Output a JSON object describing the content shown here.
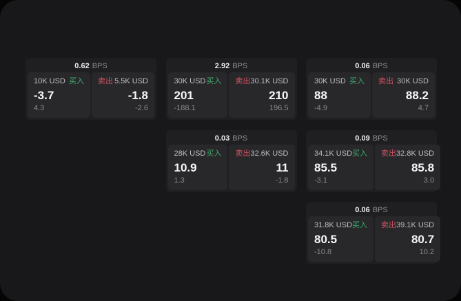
{
  "labels": {
    "bps_unit": "BPS",
    "buy": "买入",
    "sell": "卖出"
  },
  "colors": {
    "buy_green": "#3fab70",
    "sell_red": "#cd5263",
    "window_bg": "#18181a",
    "card_bg": "#1f1f21",
    "panel_bg": "#28282a"
  },
  "cards": [
    {
      "bps": "0.62",
      "buy": {
        "amount": "10K USD",
        "price": "-3.7",
        "delta": "4.3"
      },
      "sell": {
        "amount": "5.5K USD",
        "price": "-1.8",
        "delta": "-2.6"
      }
    },
    {
      "bps": "2.92",
      "buy": {
        "amount": "30K USD",
        "price": "201",
        "delta": "-188.1"
      },
      "sell": {
        "amount": "30.1K USD",
        "price": "210",
        "delta": "196.5"
      }
    },
    {
      "bps": "0.06",
      "buy": {
        "amount": "30K USD",
        "price": "88",
        "delta": "-4.9"
      },
      "sell": {
        "amount": "30K USD",
        "price": "88.2",
        "delta": "4.7"
      }
    },
    {
      "bps": "0.03",
      "buy": {
        "amount": "28K USD",
        "price": "10.9",
        "delta": "1.3"
      },
      "sell": {
        "amount": "32.6K USD",
        "price": "11",
        "delta": "-1.8"
      }
    },
    {
      "bps": "0.09",
      "buy": {
        "amount": "34.1K USD",
        "price": "85.5",
        "delta": "-3.1"
      },
      "sell": {
        "amount": "32.8K USD",
        "price": "85.8",
        "delta": "3.0"
      }
    },
    {
      "bps": "0.06",
      "buy": {
        "amount": "31.8K USD",
        "price": "80.5",
        "delta": "-10.8"
      },
      "sell": {
        "amount": "39.1K USD",
        "price": "80.7",
        "delta": "10.2"
      }
    }
  ]
}
